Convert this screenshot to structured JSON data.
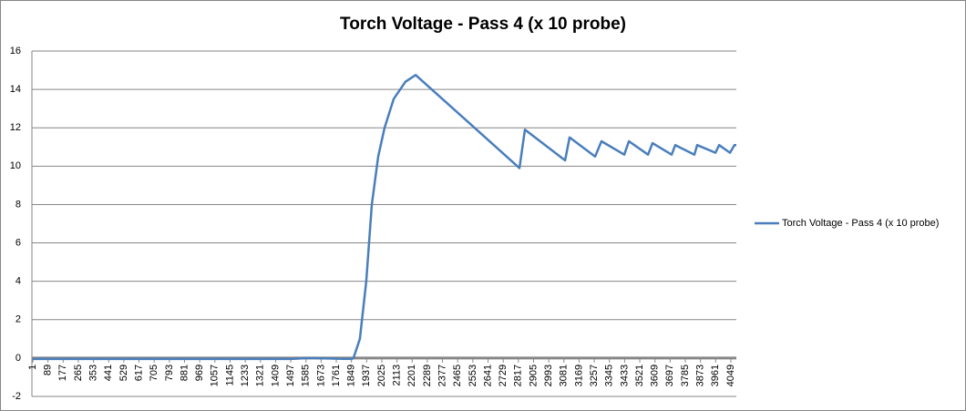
{
  "chart_data": {
    "type": "line",
    "title": "Torch Voltage - Pass 4 (x 10 probe)",
    "x": [
      1,
      500,
      1000,
      1500,
      1600,
      1850,
      1861,
      1898,
      1935,
      1967,
      2004,
      2041,
      2094,
      2162,
      2221,
      2823,
      2855,
      3088,
      3114,
      3262,
      3299,
      3431,
      3458,
      3569,
      3595,
      3706,
      3727,
      3838,
      3854,
      3960,
      3981,
      4044,
      4070,
      4081
    ],
    "series": [
      {
        "name": "Torch Voltage - Pass 4 (x 10 probe)",
        "color": "#4a7ebb",
        "values": [
          -0.05,
          -0.05,
          -0.05,
          -0.05,
          0,
          -0.05,
          0,
          1,
          4,
          8,
          10.5,
          12,
          13.5,
          14.4,
          14.75,
          9.9,
          11.9,
          10.3,
          11.5,
          10.5,
          11.3,
          10.6,
          11.3,
          10.6,
          11.2,
          10.6,
          11.1,
          10.6,
          11.1,
          10.7,
          11.1,
          10.7,
          11.1,
          11.1
        ]
      }
    ],
    "xlim": [
      1,
      4081
    ],
    "xticks": [
      1,
      89,
      177,
      265,
      353,
      441,
      529,
      617,
      705,
      793,
      881,
      969,
      1057,
      1145,
      1233,
      1321,
      1409,
      1497,
      1585,
      1673,
      1761,
      1849,
      1937,
      2025,
      2113,
      2201,
      2289,
      2377,
      2465,
      2553,
      2641,
      2729,
      2817,
      2905,
      2993,
      3081,
      3169,
      3257,
      3345,
      3433,
      3521,
      3609,
      3697,
      3785,
      3873,
      3961,
      4049
    ],
    "ylim": [
      -2,
      16
    ],
    "yticks": [
      -2,
      0,
      2,
      4,
      6,
      8,
      10,
      12,
      14,
      16
    ],
    "grid": true,
    "legend": "right"
  }
}
